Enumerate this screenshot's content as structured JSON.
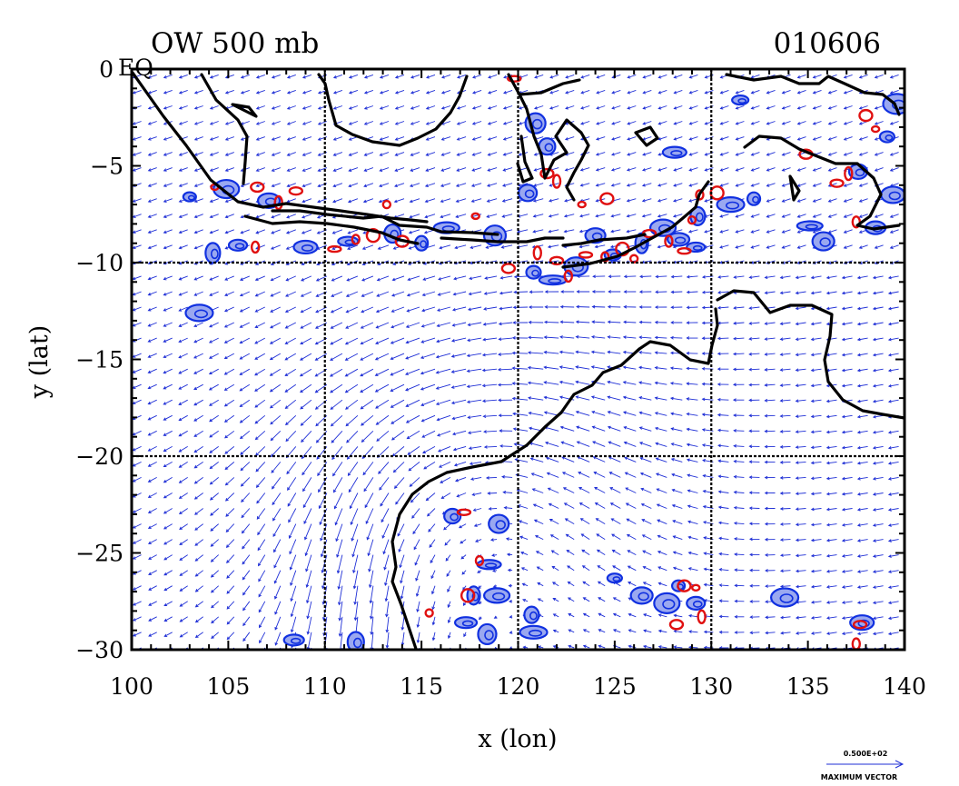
{
  "header": {
    "title": "OW 500 mb",
    "date": "010606"
  },
  "colors": {
    "vectors": "#1f2fd6",
    "positive_contour": "#e01010",
    "negative_contour": "#1030e0",
    "negative_fill": "#9aa8f0",
    "coast": "#000000"
  },
  "chart_data": {
    "type": "vector field with contours",
    "title": "OW 500 mb",
    "date_label": "010606",
    "xlabel": "x (lon)",
    "ylabel": "y (lat)",
    "xlim": [
      100,
      140
    ],
    "ylim": [
      -30,
      0
    ],
    "x_ticks": [
      "100",
      "105",
      "110",
      "115",
      "120",
      "125",
      "130",
      "135",
      "140"
    ],
    "y_ticks": [
      "0 EQ",
      "−5",
      "−10",
      "−15",
      "−20",
      "−25",
      "−30"
    ],
    "grid_lon": [
      110,
      120,
      130
    ],
    "grid_lat": [
      -10,
      -20
    ],
    "reference_vector": {
      "value": "0.500E+02",
      "label": "MAXIMUM VECTOR"
    },
    "positive_contours": [
      {
        "lon": 104.3,
        "lat": -6.1
      },
      {
        "lon": 106.5,
        "lat": -6.1
      },
      {
        "lon": 107.6,
        "lat": -6.9
      },
      {
        "lon": 108.5,
        "lat": -6.3
      },
      {
        "lon": 106.4,
        "lat": -9.2
      },
      {
        "lon": 110.5,
        "lat": -9.3
      },
      {
        "lon": 111.6,
        "lat": -8.8
      },
      {
        "lon": 112.5,
        "lat": -8.6
      },
      {
        "lon": 113.2,
        "lat": -7.0
      },
      {
        "lon": 114.0,
        "lat": -8.9
      },
      {
        "lon": 117.8,
        "lat": -7.6
      },
      {
        "lon": 119.5,
        "lat": -10.3
      },
      {
        "lon": 121.0,
        "lat": -9.5
      },
      {
        "lon": 122.0,
        "lat": -9.9
      },
      {
        "lon": 122.6,
        "lat": -10.7
      },
      {
        "lon": 123.5,
        "lat": -9.6
      },
      {
        "lon": 124.5,
        "lat": -9.7
      },
      {
        "lon": 125.4,
        "lat": -9.3
      },
      {
        "lon": 126.0,
        "lat": -9.8
      },
      {
        "lon": 124.6,
        "lat": -6.7
      },
      {
        "lon": 123.3,
        "lat": -7.0
      },
      {
        "lon": 121.5,
        "lat": -5.4
      },
      {
        "lon": 122.0,
        "lat": -5.8
      },
      {
        "lon": 126.8,
        "lat": -8.5
      },
      {
        "lon": 127.8,
        "lat": -8.9
      },
      {
        "lon": 128.6,
        "lat": -9.4
      },
      {
        "lon": 129.4,
        "lat": -6.5
      },
      {
        "lon": 130.3,
        "lat": -6.4
      },
      {
        "lon": 129.0,
        "lat": -7.8
      },
      {
        "lon": 138.0,
        "lat": -2.4
      },
      {
        "lon": 138.5,
        "lat": -3.1
      },
      {
        "lon": 134.9,
        "lat": -4.4
      },
      {
        "lon": 137.1,
        "lat": -5.4
      },
      {
        "lon": 136.5,
        "lat": -5.9
      },
      {
        "lon": 137.5,
        "lat": -7.9
      },
      {
        "lon": 117.2,
        "lat": -22.9
      },
      {
        "lon": 118.0,
        "lat": -25.4
      },
      {
        "lon": 117.4,
        "lat": -27.2
      },
      {
        "lon": 115.4,
        "lat": -28.1
      },
      {
        "lon": 128.6,
        "lat": -26.7
      },
      {
        "lon": 129.2,
        "lat": -26.8
      },
      {
        "lon": 128.2,
        "lat": -28.7
      },
      {
        "lon": 129.5,
        "lat": -28.3
      },
      {
        "lon": 137.7,
        "lat": -28.7
      },
      {
        "lon": 137.5,
        "lat": -29.7
      },
      {
        "lon": 119.8,
        "lat": -0.5
      }
    ],
    "negative_regions": [
      {
        "lon": 103.0,
        "lat": -6.6
      },
      {
        "lon": 104.9,
        "lat": -6.2
      },
      {
        "lon": 107.1,
        "lat": -6.8
      },
      {
        "lon": 105.5,
        "lat": -9.1
      },
      {
        "lon": 104.2,
        "lat": -9.5
      },
      {
        "lon": 103.5,
        "lat": -12.6
      },
      {
        "lon": 109.0,
        "lat": -9.2
      },
      {
        "lon": 111.2,
        "lat": -8.9
      },
      {
        "lon": 113.5,
        "lat": -8.5
      },
      {
        "lon": 115.0,
        "lat": -9.0
      },
      {
        "lon": 116.3,
        "lat": -8.2
      },
      {
        "lon": 118.8,
        "lat": -8.6
      },
      {
        "lon": 120.5,
        "lat": -6.4
      },
      {
        "lon": 120.8,
        "lat": -10.5
      },
      {
        "lon": 121.8,
        "lat": -10.9
      },
      {
        "lon": 123.0,
        "lat": -10.2
      },
      {
        "lon": 124.0,
        "lat": -8.6
      },
      {
        "lon": 124.9,
        "lat": -9.6
      },
      {
        "lon": 126.4,
        "lat": -9.0
      },
      {
        "lon": 127.5,
        "lat": -8.2
      },
      {
        "lon": 128.3,
        "lat": -8.8
      },
      {
        "lon": 129.2,
        "lat": -9.2
      },
      {
        "lon": 129.3,
        "lat": -7.6
      },
      {
        "lon": 131.0,
        "lat": -7.0
      },
      {
        "lon": 128.1,
        "lat": -4.3
      },
      {
        "lon": 120.9,
        "lat": -2.8
      },
      {
        "lon": 121.5,
        "lat": -4.0
      },
      {
        "lon": 132.2,
        "lat": -6.7
      },
      {
        "lon": 135.1,
        "lat": -8.1
      },
      {
        "lon": 135.8,
        "lat": -8.9
      },
      {
        "lon": 137.6,
        "lat": -5.3
      },
      {
        "lon": 139.1,
        "lat": -3.5
      },
      {
        "lon": 139.6,
        "lat": -1.8
      },
      {
        "lon": 139.4,
        "lat": -6.5
      },
      {
        "lon": 138.5,
        "lat": -8.2
      },
      {
        "lon": 131.5,
        "lat": -1.6
      },
      {
        "lon": 117.7,
        "lat": -27.2
      },
      {
        "lon": 118.9,
        "lat": -27.2
      },
      {
        "lon": 117.3,
        "lat": -28.6
      },
      {
        "lon": 118.4,
        "lat": -29.2
      },
      {
        "lon": 120.7,
        "lat": -28.2
      },
      {
        "lon": 120.8,
        "lat": -29.1
      },
      {
        "lon": 118.5,
        "lat": -25.6
      },
      {
        "lon": 119.0,
        "lat": -23.5
      },
      {
        "lon": 116.6,
        "lat": -23.1
      },
      {
        "lon": 128.3,
        "lat": -26.7
      },
      {
        "lon": 127.7,
        "lat": -27.6
      },
      {
        "lon": 126.4,
        "lat": -27.2
      },
      {
        "lon": 129.2,
        "lat": -27.6
      },
      {
        "lon": 125.0,
        "lat": -26.3
      },
      {
        "lon": 133.8,
        "lat": -27.3
      },
      {
        "lon": 137.8,
        "lat": -28.6
      },
      {
        "lon": 108.4,
        "lat": -29.5
      },
      {
        "lon": 111.6,
        "lat": -29.6
      }
    ]
  }
}
